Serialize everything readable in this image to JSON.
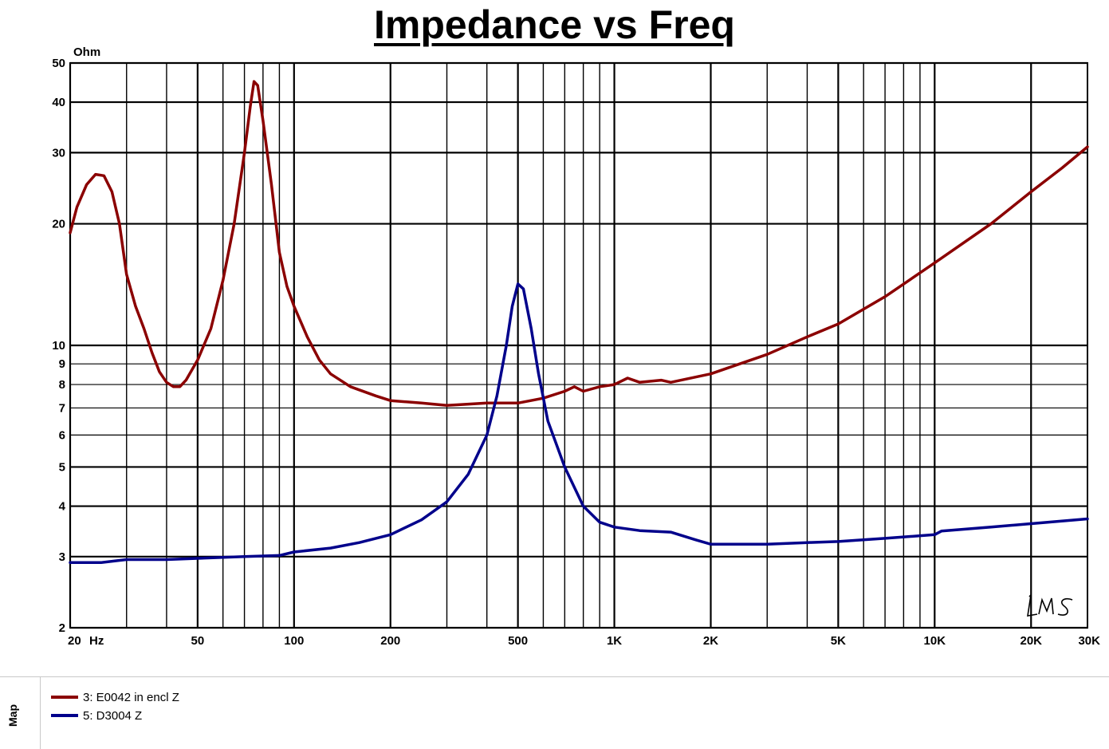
{
  "title": "Impedance vs Freq",
  "map_label": "Map",
  "chart_data": {
    "type": "line",
    "title": "Impedance vs Freq",
    "y_unit_label": "Ohm",
    "x_unit_label": "Hz",
    "x_scale": "log",
    "y_scale": "log",
    "xlim": [
      20,
      30000
    ],
    "ylim": [
      2,
      50
    ],
    "grid": true,
    "legend_placement": "bottom-left",
    "x_ticks": [
      {
        "value": 20,
        "label": "20"
      },
      {
        "value": 50,
        "label": "50"
      },
      {
        "value": 100,
        "label": "100"
      },
      {
        "value": 200,
        "label": "200"
      },
      {
        "value": 500,
        "label": "500"
      },
      {
        "value": 1000,
        "label": "1K"
      },
      {
        "value": 2000,
        "label": "2K"
      },
      {
        "value": 5000,
        "label": "5K"
      },
      {
        "value": 10000,
        "label": "10K"
      },
      {
        "value": 20000,
        "label": "20K"
      },
      {
        "value": 30000,
        "label": "30K"
      }
    ],
    "y_ticks": [
      {
        "value": 2,
        "label": "2"
      },
      {
        "value": 3,
        "label": "3"
      },
      {
        "value": 4,
        "label": "4"
      },
      {
        "value": 5,
        "label": "5"
      },
      {
        "value": 6,
        "label": "6"
      },
      {
        "value": 7,
        "label": "7"
      },
      {
        "value": 8,
        "label": "8"
      },
      {
        "value": 9,
        "label": "9"
      },
      {
        "value": 10,
        "label": "10"
      },
      {
        "value": 20,
        "label": "20"
      },
      {
        "value": 30,
        "label": "30"
      },
      {
        "value": 40,
        "label": "40"
      },
      {
        "value": 50,
        "label": "50"
      }
    ],
    "series": [
      {
        "name": "3: E0042 in encl Z",
        "color": "#8b0000",
        "points": [
          [
            20,
            19
          ],
          [
            21,
            22
          ],
          [
            22.5,
            25
          ],
          [
            24,
            26.5
          ],
          [
            25.5,
            26.3
          ],
          [
            27,
            24
          ],
          [
            28.5,
            20
          ],
          [
            30,
            15
          ],
          [
            32,
            12.5
          ],
          [
            34,
            11
          ],
          [
            36,
            9.6
          ],
          [
            38,
            8.6
          ],
          [
            40,
            8.1
          ],
          [
            42,
            7.9
          ],
          [
            44,
            7.9
          ],
          [
            46,
            8.2
          ],
          [
            50,
            9.2
          ],
          [
            55,
            11
          ],
          [
            60,
            14.5
          ],
          [
            65,
            20
          ],
          [
            70,
            30
          ],
          [
            73,
            39
          ],
          [
            75,
            45
          ],
          [
            77,
            44
          ],
          [
            80,
            36
          ],
          [
            85,
            25
          ],
          [
            90,
            17
          ],
          [
            95,
            14
          ],
          [
            100,
            12.5
          ],
          [
            110,
            10.5
          ],
          [
            120,
            9.2
          ],
          [
            130,
            8.5
          ],
          [
            150,
            7.9
          ],
          [
            180,
            7.5
          ],
          [
            200,
            7.3
          ],
          [
            250,
            7.2
          ],
          [
            300,
            7.1
          ],
          [
            400,
            7.2
          ],
          [
            500,
            7.2
          ],
          [
            600,
            7.4
          ],
          [
            700,
            7.7
          ],
          [
            750,
            7.9
          ],
          [
            800,
            7.7
          ],
          [
            900,
            7.9
          ],
          [
            1000,
            8
          ],
          [
            1100,
            8.3
          ],
          [
            1200,
            8.1
          ],
          [
            1400,
            8.2
          ],
          [
            1500,
            8.1
          ],
          [
            2000,
            8.5
          ],
          [
            3000,
            9.5
          ],
          [
            4000,
            10.5
          ],
          [
            5000,
            11.3
          ],
          [
            7000,
            13.2
          ],
          [
            10000,
            16
          ],
          [
            15000,
            20
          ],
          [
            20000,
            24
          ],
          [
            25000,
            27.5
          ],
          [
            30000,
            31
          ]
        ]
      },
      {
        "name": "5: D3004 Z",
        "color": "#00008b",
        "points": [
          [
            20,
            2.9
          ],
          [
            25,
            2.9
          ],
          [
            30,
            2.95
          ],
          [
            40,
            2.95
          ],
          [
            50,
            2.97
          ],
          [
            70,
            3
          ],
          [
            90,
            3.02
          ],
          [
            100,
            3.08
          ],
          [
            130,
            3.15
          ],
          [
            160,
            3.25
          ],
          [
            200,
            3.4
          ],
          [
            250,
            3.7
          ],
          [
            300,
            4.1
          ],
          [
            350,
            4.8
          ],
          [
            400,
            6
          ],
          [
            430,
            7.5
          ],
          [
            460,
            10
          ],
          [
            480,
            12.5
          ],
          [
            500,
            14.2
          ],
          [
            520,
            13.8
          ],
          [
            550,
            11
          ],
          [
            580,
            8.5
          ],
          [
            620,
            6.5
          ],
          [
            700,
            5
          ],
          [
            800,
            4
          ],
          [
            900,
            3.65
          ],
          [
            1000,
            3.55
          ],
          [
            1200,
            3.48
          ],
          [
            1500,
            3.45
          ],
          [
            1800,
            3.3
          ],
          [
            2000,
            3.22
          ],
          [
            2500,
            3.22
          ],
          [
            3000,
            3.22
          ],
          [
            4000,
            3.25
          ],
          [
            5000,
            3.27
          ],
          [
            7000,
            3.33
          ],
          [
            10000,
            3.4
          ],
          [
            10500,
            3.47
          ],
          [
            15000,
            3.55
          ],
          [
            20000,
            3.62
          ],
          [
            30000,
            3.72
          ]
        ]
      }
    ]
  },
  "legend": [
    {
      "label": "3: E0042 in encl Z",
      "color": "#8b0000"
    },
    {
      "label": "5: D3004 Z",
      "color": "#00008b"
    }
  ]
}
